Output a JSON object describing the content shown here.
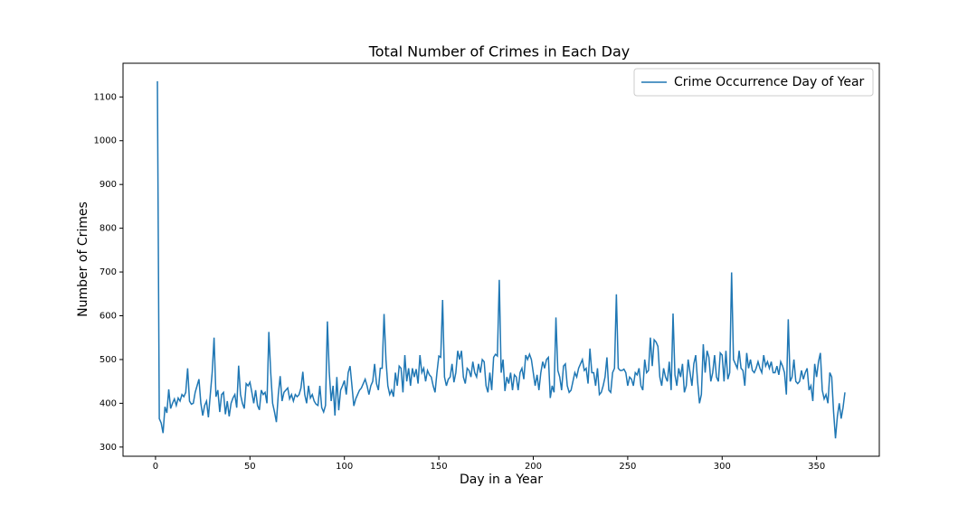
{
  "chart_data": {
    "type": "line",
    "title": "Total Number of Crimes in Each Day",
    "x_label": "Day in a Year",
    "y_label": "Number of Crimes",
    "x": [
      1,
      2,
      3,
      4,
      5,
      6,
      7,
      8,
      9,
      10,
      11,
      12,
      13,
      14,
      15,
      16,
      17,
      18,
      19,
      20,
      21,
      22,
      23,
      24,
      25,
      26,
      27,
      28,
      29,
      30,
      31,
      32,
      33,
      34,
      35,
      36,
      37,
      38,
      39,
      40,
      41,
      42,
      43,
      44,
      45,
      46,
      47,
      48,
      49,
      50,
      51,
      52,
      53,
      54,
      55,
      56,
      57,
      58,
      59,
      60,
      61,
      62,
      63,
      64,
      65,
      66,
      67,
      68,
      69,
      70,
      71,
      72,
      73,
      74,
      75,
      76,
      77,
      78,
      79,
      80,
      81,
      82,
      83,
      84,
      85,
      86,
      87,
      88,
      89,
      90,
      91,
      92,
      93,
      94,
      95,
      96,
      97,
      98,
      99,
      100,
      101,
      102,
      103,
      104,
      105,
      106,
      107,
      108,
      109,
      110,
      111,
      112,
      113,
      114,
      115,
      116,
      117,
      118,
      119,
      120,
      121,
      122,
      123,
      124,
      125,
      126,
      127,
      128,
      129,
      130,
      131,
      132,
      133,
      134,
      135,
      136,
      137,
      138,
      139,
      140,
      141,
      142,
      143,
      144,
      145,
      146,
      147,
      148,
      149,
      150,
      151,
      152,
      153,
      154,
      155,
      156,
      157,
      158,
      159,
      160,
      161,
      162,
      163,
      164,
      165,
      166,
      167,
      168,
      169,
      170,
      171,
      172,
      173,
      174,
      175,
      176,
      177,
      178,
      179,
      180,
      181,
      182,
      183,
      184,
      185,
      186,
      187,
      188,
      189,
      190,
      191,
      192,
      193,
      194,
      195,
      196,
      197,
      198,
      199,
      200,
      201,
      202,
      203,
      204,
      205,
      206,
      207,
      208,
      209,
      210,
      211,
      212,
      213,
      214,
      215,
      216,
      217,
      218,
      219,
      220,
      221,
      222,
      223,
      224,
      225,
      226,
      227,
      228,
      229,
      230,
      231,
      232,
      233,
      234,
      235,
      236,
      237,
      238,
      239,
      240,
      241,
      242,
      243,
      244,
      245,
      246,
      247,
      248,
      249,
      250,
      251,
      252,
      253,
      254,
      255,
      256,
      257,
      258,
      259,
      260,
      261,
      262,
      263,
      264,
      265,
      266,
      267,
      268,
      269,
      270,
      271,
      272,
      273,
      274,
      275,
      276,
      277,
      278,
      279,
      280,
      281,
      282,
      283,
      284,
      285,
      286,
      287,
      288,
      289,
      290,
      291,
      292,
      293,
      294,
      295,
      296,
      297,
      298,
      299,
      300,
      301,
      302,
      303,
      304,
      305,
      306,
      307,
      308,
      309,
      310,
      311,
      312,
      313,
      314,
      315,
      316,
      317,
      318,
      319,
      320,
      321,
      322,
      323,
      324,
      325,
      326,
      327,
      328,
      329,
      330,
      331,
      332,
      333,
      334,
      335,
      336,
      337,
      338,
      339,
      340,
      341,
      342,
      343,
      344,
      345,
      346,
      347,
      348,
      349,
      350,
      351,
      352,
      353,
      354,
      355,
      356,
      357,
      358,
      359,
      360,
      361,
      362,
      363,
      364,
      365
    ],
    "series": [
      {
        "name": "Crime Occurrence Day of Year",
        "color": "#1f77b4",
        "values": [
          1136,
          365,
          355,
          332,
          392,
          378,
          432,
          388,
          400,
          410,
          395,
          412,
          405,
          420,
          415,
          425,
          480,
          405,
          398,
          400,
          425,
          440,
          455,
          400,
          372,
          395,
          405,
          368,
          420,
          470,
          550,
          415,
          430,
          380,
          420,
          425,
          375,
          405,
          370,
          400,
          412,
          420,
          390,
          486,
          420,
          400,
          388,
          445,
          440,
          448,
          425,
          400,
          430,
          395,
          385,
          430,
          420,
          425,
          400,
          563,
          470,
          400,
          380,
          357,
          420,
          462,
          405,
          425,
          430,
          435,
          410,
          420,
          405,
          420,
          415,
          420,
          435,
          472,
          420,
          400,
          440,
          412,
          420,
          405,
          398,
          395,
          440,
          390,
          380,
          395,
          587,
          470,
          405,
          440,
          372,
          460,
          384,
          430,
          440,
          452,
          420,
          470,
          485,
          440,
          394,
          410,
          420,
          430,
          435,
          445,
          455,
          440,
          420,
          440,
          450,
          490,
          445,
          430,
          480,
          480,
          604,
          500,
          440,
          420,
          430,
          415,
          470,
          440,
          485,
          480,
          425,
          510,
          450,
          480,
          440,
          480,
          460,
          478,
          445,
          510,
          470,
          480,
          450,
          475,
          465,
          460,
          440,
          425,
          470,
          508,
          505,
          636,
          460,
          440,
          455,
          460,
          490,
          448,
          470,
          520,
          500,
          520,
          460,
          445,
          480,
          475,
          460,
          495,
          470,
          460,
          490,
          470,
          500,
          495,
          440,
          425,
          470,
          430,
          505,
          512,
          508,
          682,
          470,
          500,
          428,
          460,
          445,
          470,
          430,
          465,
          460,
          430,
          470,
          480,
          455,
          510,
          500,
          512,
          500,
          470,
          440,
          465,
          430,
          470,
          495,
          480,
          500,
          505,
          412,
          440,
          425,
          596,
          475,
          460,
          430,
          485,
          490,
          440,
          425,
          430,
          450,
          470,
          460,
          480,
          490,
          500,
          475,
          480,
          445,
          525,
          470,
          470,
          440,
          480,
          420,
          425,
          440,
          460,
          505,
          430,
          425,
          470,
          480,
          649,
          480,
          475,
          475,
          478,
          470,
          440,
          460,
          455,
          440,
          470,
          465,
          480,
          440,
          430,
          500,
          470,
          475,
          550,
          485,
          545,
          540,
          530,
          460,
          440,
          480,
          460,
          450,
          495,
          430,
          605,
          465,
          440,
          480,
          460,
          490,
          425,
          440,
          500,
          470,
          440,
          490,
          510,
          450,
          400,
          420,
          535,
          470,
          520,
          505,
          450,
          470,
          510,
          460,
          450,
          515,
          510,
          450,
          520,
          455,
          470,
          699,
          500,
          490,
          480,
          520,
          480,
          475,
          440,
          515,
          480,
          500,
          475,
          470,
          480,
          495,
          480,
          470,
          510,
          485,
          495,
          480,
          495,
          470,
          470,
          485,
          465,
          495,
          485,
          470,
          420,
          592,
          450,
          460,
          500,
          450,
          445,
          450,
          475,
          455,
          470,
          480,
          430,
          440,
          405,
          490,
          460,
          495,
          515,
          430,
          410,
          420,
          400,
          470,
          460,
          380,
          320,
          370,
          400,
          365,
          390,
          425
        ]
      }
    ],
    "xlim": [
      -17.2,
      383.2
    ],
    "ylim": [
      279,
      1177
    ],
    "xticks": [
      0,
      50,
      100,
      150,
      200,
      250,
      300,
      350
    ],
    "yticks": [
      300,
      400,
      500,
      600,
      700,
      800,
      900,
      1000,
      1100
    ],
    "legend": "upper right"
  }
}
